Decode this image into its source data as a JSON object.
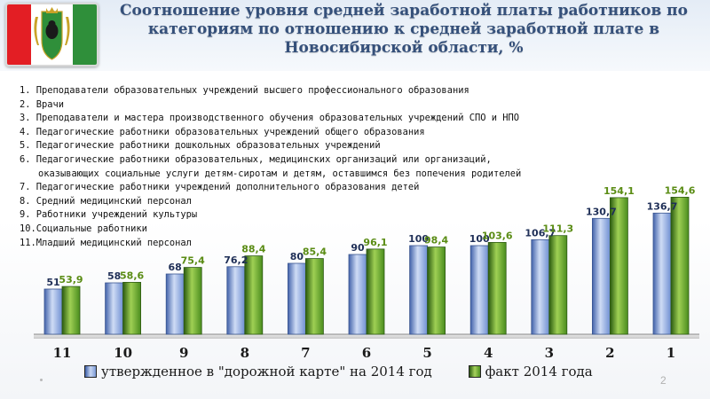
{
  "header": {
    "title": "Соотношение уровня средней заработной платы работников по категориям по отношению к средней заработной плате в Новосибирской области, %"
  },
  "categories_legend": [
    "1. Преподаватели образовательных учреждений высшего профессионального образования",
    "2. Врачи",
    "3. Преподаватели и мастера производственного обучения образовательных учреждений СПО и НПО",
    "4. Педагогические работники образовательных учреждений общего образования",
    "5. Педагогические работники дошкольных образовательных учреждений",
    "6. Педагогические работники образовательных, медицинских организаций или организаций,",
    "оказывающих социальные услуги детям-сиротам и детям, оставшимся без попечения родителей",
    "7. Педагогические работники учреждений дополнительного образования детей",
    "8. Средний медицинский персонал",
    "9. Работники учреждений культуры",
    "10.Социальные работники",
    "11.Младший медицинский персонал"
  ],
  "chart_data": {
    "type": "bar",
    "title": "Соотношение уровня средней заработной платы работников по категориям по отношению к средней заработной плате в Новосибирской области, %",
    "categories": [
      "11",
      "10",
      "9",
      "8",
      "7",
      "6",
      "5",
      "4",
      "3",
      "2",
      "1"
    ],
    "series": [
      {
        "name": "утвержденное в \"дорожной карте\" на 2014 год",
        "values": [
          51,
          58,
          68,
          76.2,
          80,
          90,
          100,
          100,
          106.7,
          130.7,
          136.7
        ],
        "labels": [
          "51",
          "58",
          "68",
          "76,2",
          "80",
          "90",
          "100",
          "100",
          "106,7",
          "130,7",
          "136,7"
        ],
        "color": "#8fa9e0"
      },
      {
        "name": "факт 2014 года",
        "values": [
          53.9,
          58.6,
          75.4,
          88.4,
          85.4,
          96.1,
          98.4,
          103.6,
          111.3,
          154.1,
          154.6
        ],
        "labels": [
          "53,9",
          "58,6",
          "75,4",
          "88,4",
          "85,4",
          "96,1",
          "98,4",
          "103,6",
          "111,3",
          "154,1",
          "154,6"
        ],
        "color": "#6aa82e"
      }
    ],
    "ylim": [
      0,
      165
    ],
    "grid": false,
    "legend": "bottom"
  },
  "page_number": "2"
}
